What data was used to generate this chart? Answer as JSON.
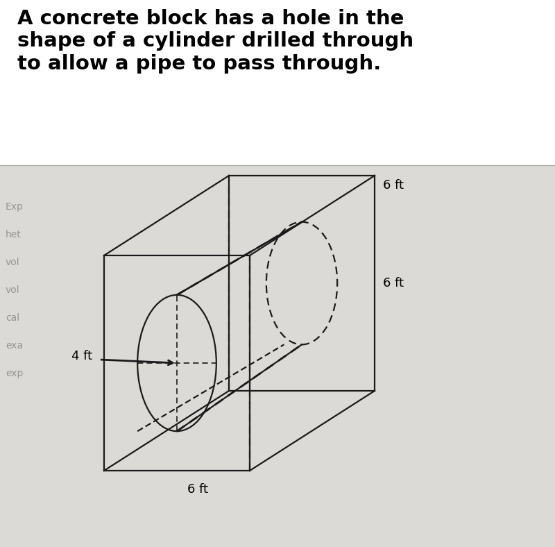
{
  "title_text": "A concrete block has a hole in the\nshape of a cylinder drilled through\nto allow a pipe to pass through.",
  "title_fontsize": 21,
  "bg_color": "#f0eeeb",
  "white_area_color": "#f5f3f0",
  "label_6ft_top": "6 ft",
  "label_6ft_right": "6 ft",
  "label_6ft_bottom": "6 ft",
  "label_4ft": "4 ft",
  "line_color": "#1a1a1a",
  "dashed_color": "#1a1a1a",
  "side_labels": [
    "Exp",
    "het",
    "vol",
    "vol",
    "cal",
    "exa",
    "exp"
  ]
}
